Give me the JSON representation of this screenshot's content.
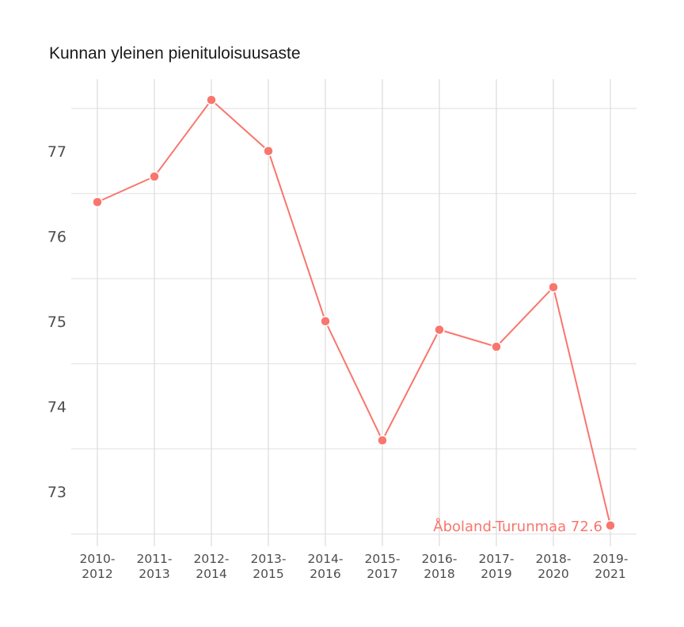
{
  "chart_data": {
    "type": "line",
    "title": "Kunnan yleinen pienituloisuusaste",
    "xlabel": "",
    "ylabel": "",
    "categories": [
      "2010-2012",
      "2011-2013",
      "2012-2014",
      "2013-2015",
      "2014-2016",
      "2015-2017",
      "2016-2018",
      "2017-2019",
      "2018-2020",
      "2019-2021"
    ],
    "category_lines": [
      [
        "2010-",
        "2012"
      ],
      [
        "2011-",
        "2013"
      ],
      [
        "2012-",
        "2014"
      ],
      [
        "2013-",
        "2015"
      ],
      [
        "2014-",
        "2016"
      ],
      [
        "2015-",
        "2017"
      ],
      [
        "2016-",
        "2018"
      ],
      [
        "2017-",
        "2019"
      ],
      [
        "2018-",
        "2020"
      ],
      [
        "2019-",
        "2021"
      ]
    ],
    "series": [
      {
        "name": "Åboland-Turunmaa",
        "color": "#f8766d",
        "values": [
          76.4,
          76.7,
          77.6,
          77.0,
          75.0,
          73.6,
          74.9,
          74.7,
          75.4,
          72.6
        ]
      }
    ],
    "yticks": [
      73,
      74,
      75,
      76,
      77
    ],
    "ylim": [
      72.5,
      77.85
    ],
    "grid": true,
    "legend": "none",
    "annotation": {
      "text": "Åboland-Turunmaa 72.6",
      "at_category": "2019-2021",
      "value": 72.6
    }
  },
  "header": {
    "title": "Kunnan yleinen pienituloisuusaste"
  }
}
